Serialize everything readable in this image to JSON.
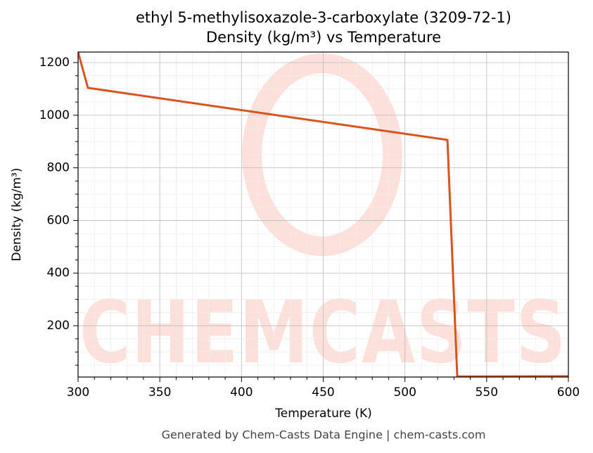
{
  "chart_data": {
    "type": "line",
    "title": "ethyl 5-methylisoxazole-3-carboxylate (3209-72-1)",
    "subtitle": "Density (kg/m³) vs Temperature",
    "xlabel": "Temperature (K)",
    "ylabel": "Density (kg/m³)",
    "x": [
      300,
      306,
      526,
      532,
      600
    ],
    "values": [
      1240,
      1104,
      906,
      7,
      8
    ],
    "color": "#d9531e",
    "xlim": [
      300,
      600
    ],
    "xticks": [
      300,
      350,
      400,
      450,
      500,
      550,
      600
    ],
    "ylim": [
      5,
      1240
    ],
    "yticks": [
      200,
      400,
      600,
      800,
      1000,
      1200
    ],
    "grid": true,
    "watermark": "CHEMCASTS",
    "footer": "Generated by Chem-Casts Data Engine | chem-casts.com"
  }
}
